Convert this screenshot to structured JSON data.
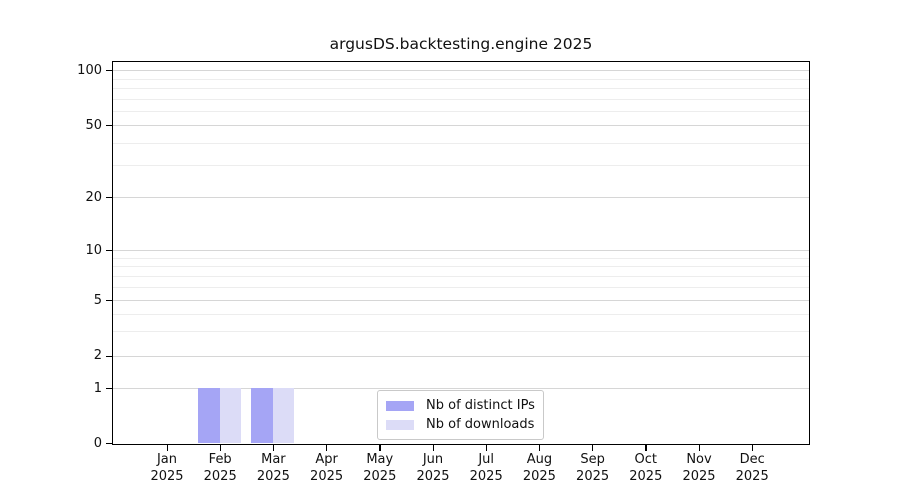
{
  "title": "argusDS.backtesting.engine 2025",
  "colors": {
    "distinct_ips": "#a5a5f5",
    "downloads": "#dcdcf7",
    "grid_major": "#d6d6d6",
    "grid_minor": "#ededed",
    "spine": "#000000",
    "text": "#111111",
    "legend_border": "#c9c9c9"
  },
  "chart_data": {
    "type": "bar",
    "title": "argusDS.backtesting.engine 2025",
    "categories": [
      "Jan 2025",
      "Feb 2025",
      "Mar 2025",
      "Apr 2025",
      "May 2025",
      "Jun 2025",
      "Jul 2025",
      "Aug 2025",
      "Sep 2025",
      "Oct 2025",
      "Nov 2025",
      "Dec 2025"
    ],
    "series": [
      {
        "name": "Nb of distinct IPs",
        "key": "distinct-ips",
        "color": "#a5a5f5",
        "values": [
          0,
          1,
          1,
          0,
          0,
          0,
          0,
          0,
          0,
          0,
          0,
          0
        ]
      },
      {
        "name": "Nb of downloads",
        "key": "downloads",
        "color": "#dcdcf7",
        "values": [
          0,
          1,
          1,
          0,
          0,
          0,
          0,
          0,
          0,
          0,
          0,
          0
        ]
      }
    ],
    "xlabel": "",
    "ylabel": "",
    "yticks": [
      0,
      1,
      2,
      5,
      10,
      20,
      50,
      100
    ],
    "y_minor_ticks": [
      3,
      4,
      6,
      7,
      8,
      9,
      30,
      40,
      60,
      70,
      80,
      90
    ],
    "ylim": [
      0,
      113
    ],
    "yscale": "log-like above 1, linear 0 to 1",
    "grid": "horizontal major and minor gridlines",
    "legend_position": "lower center inside plot"
  }
}
